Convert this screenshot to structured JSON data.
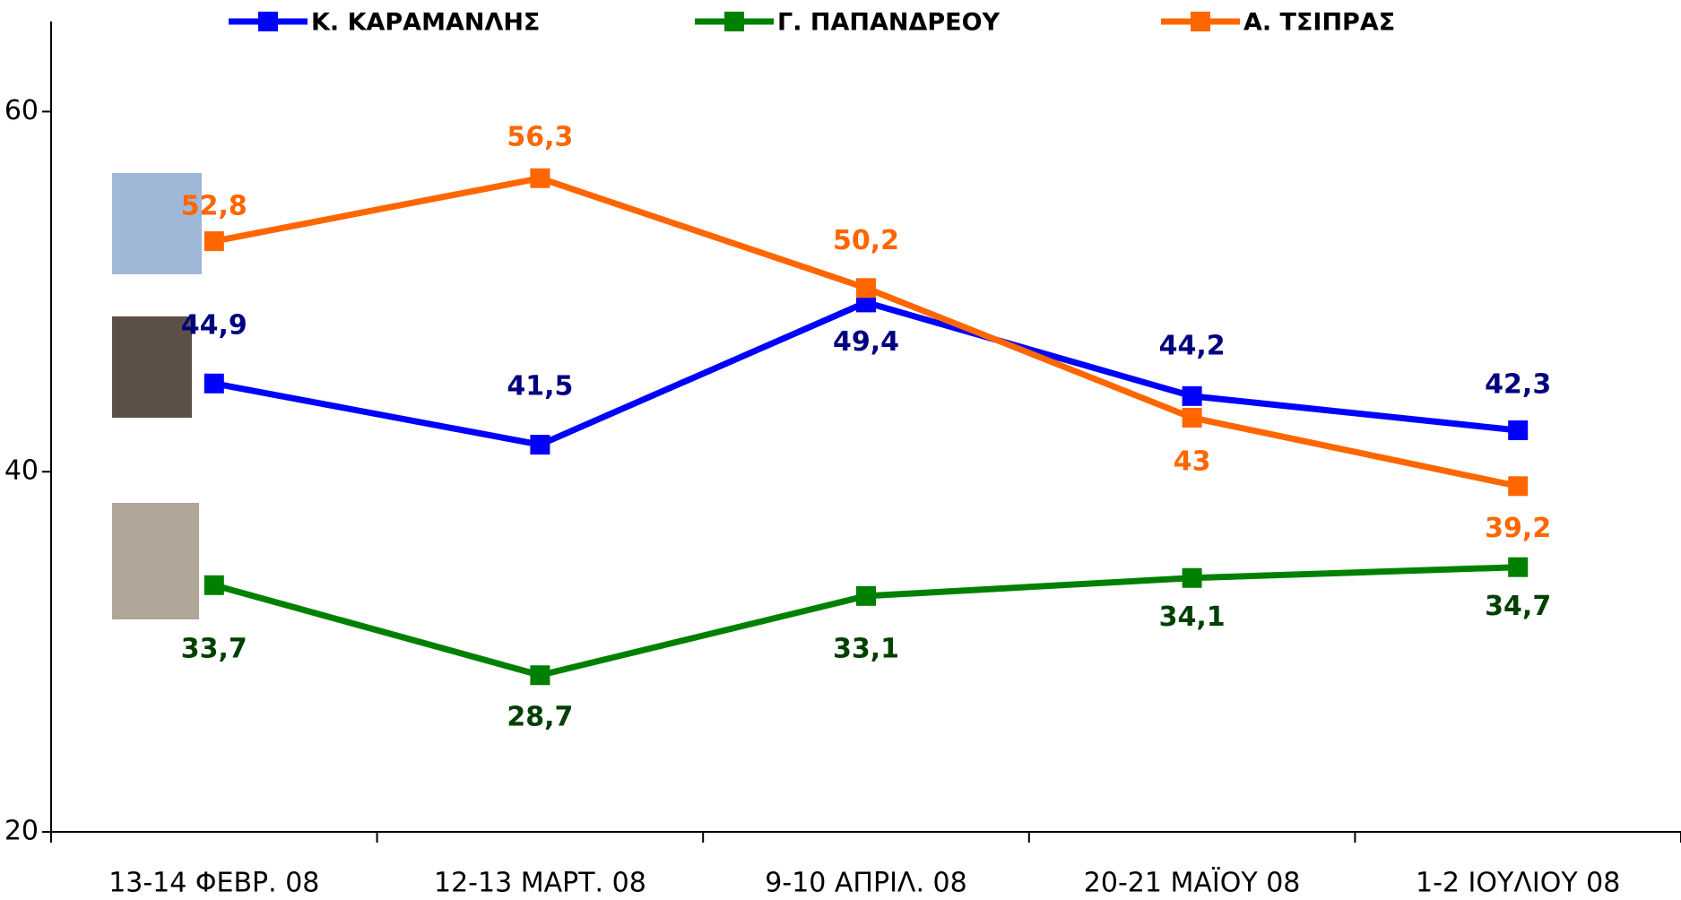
{
  "chart_data": {
    "type": "line",
    "categories": [
      "13-14 ΦΕΒΡ. 08",
      "12-13 ΜΑΡΤ. 08",
      "9-10 ΑΠΡΙΛ. 08",
      "20-21 ΜΑΪΟΥ 08",
      "1-2 ΙΟΥΛΙΟΥ 08"
    ],
    "series": [
      {
        "name": "Κ. ΚΑΡΑΜΑΝΛΗΣ",
        "color": "#0000ff",
        "label_color": "#000080",
        "values": [
          44.9,
          41.5,
          49.4,
          44.2,
          42.3
        ],
        "value_labels": [
          "44,9",
          "41,5",
          "49,4",
          "44,2",
          "42,3"
        ]
      },
      {
        "name": "Γ. ΠΑΠΑΝΔΡΕΟΥ",
        "color": "#008000",
        "label_color": "#004000",
        "values": [
          33.7,
          28.7,
          33.1,
          34.1,
          34.7
        ],
        "value_labels": [
          "33,7",
          "28,7",
          "33,1",
          "34,1",
          "34,7"
        ]
      },
      {
        "name": "Α. ΤΣΙΠΡΑΣ",
        "color": "#ff6600",
        "label_color": "#ff6600",
        "values": [
          52.8,
          56.3,
          50.2,
          43,
          39.2
        ],
        "value_labels": [
          "52,8",
          "56,3",
          "50,2",
          "43",
          "39,2"
        ]
      }
    ],
    "ylim": [
      20,
      65
    ],
    "yticks": [
      20,
      40,
      60
    ],
    "grid": false
  }
}
